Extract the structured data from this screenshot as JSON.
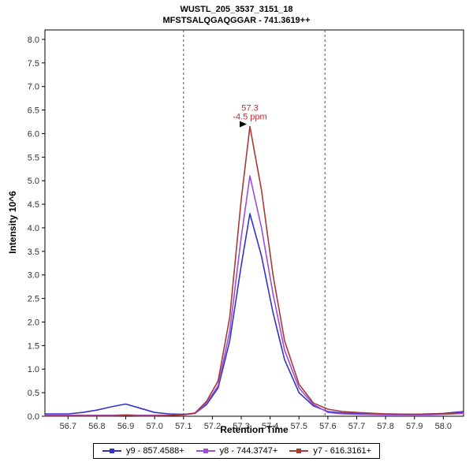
{
  "chart_data": {
    "type": "line",
    "title": "WUSTL_205_3537_3151_18",
    "subtitle": "MFSTSALQGAQGGAR - 741.3619++",
    "xlabel": "Retention Time",
    "ylabel": "Intensity 10^6",
    "xlim": [
      56.62,
      58.07
    ],
    "ylim": [
      0,
      8.2
    ],
    "grid": false,
    "legend_position": "bottom",
    "x_ticks": [
      56.7,
      56.8,
      56.9,
      57.0,
      57.1,
      57.2,
      57.3,
      57.4,
      57.5,
      57.6,
      57.7,
      57.8,
      57.9,
      58.0
    ],
    "y_ticks": [
      0.0,
      0.5,
      1.0,
      1.5,
      2.0,
      2.5,
      3.0,
      3.5,
      4.0,
      4.5,
      5.0,
      5.5,
      6.0,
      6.5,
      7.0,
      7.5,
      8.0
    ],
    "x": [
      56.62,
      56.7,
      56.75,
      56.8,
      56.85,
      56.9,
      56.95,
      57.0,
      57.05,
      57.1,
      57.14,
      57.18,
      57.22,
      57.26,
      57.3,
      57.33,
      57.37,
      57.41,
      57.45,
      57.5,
      57.55,
      57.6,
      57.65,
      57.7,
      57.8,
      57.9,
      57.95,
      58.0,
      58.07
    ],
    "series": [
      {
        "name": "y9 - 857.4588+",
        "color": "#3333cc",
        "values": [
          0.05,
          0.05,
          0.08,
          0.13,
          0.2,
          0.26,
          0.17,
          0.08,
          0.05,
          0.04,
          0.06,
          0.25,
          0.6,
          1.6,
          3.2,
          4.3,
          3.4,
          2.2,
          1.2,
          0.5,
          0.22,
          0.1,
          0.07,
          0.06,
          0.05,
          0.04,
          0.05,
          0.06,
          0.1
        ]
      },
      {
        "name": "y8 - 744.3747+",
        "color": "#9b4fd9",
        "values": [
          0.02,
          0.02,
          0.02,
          0.02,
          0.02,
          0.03,
          0.02,
          0.02,
          0.02,
          0.03,
          0.06,
          0.28,
          0.65,
          1.8,
          3.8,
          5.1,
          4.0,
          2.6,
          1.4,
          0.6,
          0.25,
          0.08,
          0.05,
          0.04,
          0.03,
          0.03,
          0.03,
          0.04,
          0.06
        ]
      },
      {
        "name": "y7 - 616.3161+",
        "color": "#a93939",
        "values": [
          0.01,
          0.01,
          0.01,
          0.01,
          0.01,
          0.02,
          0.01,
          0.01,
          0.02,
          0.03,
          0.07,
          0.32,
          0.75,
          2.1,
          4.6,
          6.15,
          4.8,
          3.0,
          1.6,
          0.68,
          0.28,
          0.15,
          0.1,
          0.08,
          0.05,
          0.04,
          0.05,
          0.05,
          0.08
        ]
      }
    ],
    "integration_boundaries": [
      57.1,
      57.59
    ],
    "annotation": {
      "rt_label": "57.3",
      "ppm_label": "-4.5 ppm",
      "x": 57.33,
      "y": 6.15,
      "text_color": "#bb3333",
      "arrow_color": "#000000"
    }
  }
}
